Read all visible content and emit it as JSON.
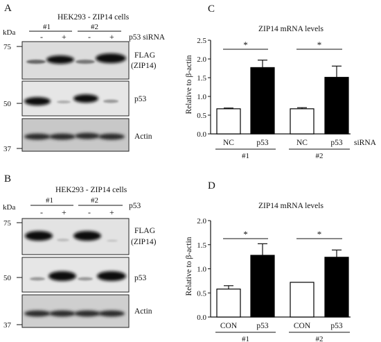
{
  "panels": {
    "A": {
      "letter": "A",
      "title": "HEK293 - ZIP14 cells",
      "kda_label": "kDa",
      "groups": [
        "#1",
        "#2"
      ],
      "treatment_label": "p53 siRNA",
      "lane_signs": [
        "-",
        "+",
        "-",
        "+"
      ],
      "markers": [
        "75",
        "50",
        "37"
      ],
      "blots": [
        {
          "label_line1": "FLAG",
          "label_line2": "(ZIP14)"
        },
        {
          "label_line1": "p53",
          "label_line2": ""
        },
        {
          "label_line1": "Actin",
          "label_line2": ""
        }
      ]
    },
    "B": {
      "letter": "B",
      "title": "HEK293 - ZIP14 cells",
      "kda_label": "kDa",
      "groups": [
        "#1",
        "#2"
      ],
      "treatment_label": "p53",
      "lane_signs": [
        "-",
        "+",
        "-",
        "+"
      ],
      "markers": [
        "75",
        "50",
        "37"
      ],
      "blots": [
        {
          "label_line1": "FLAG",
          "label_line2": "(ZIP14)"
        },
        {
          "label_line1": "p53",
          "label_line2": ""
        },
        {
          "label_line1": "Actin",
          "label_line2": ""
        }
      ]
    }
  },
  "chart_data": [
    {
      "panel": "C",
      "type": "bar",
      "title": "ZIP14 mRNA levels",
      "ylabel": "Relative to β-actin",
      "xlabel": "siRNA",
      "ylim": [
        0,
        2.5
      ],
      "yticks": [
        "0.0",
        "0.5",
        "1.0",
        "1.5",
        "2.0",
        "2.5"
      ],
      "categories": [
        "NC",
        "p53",
        "NC",
        "p53"
      ],
      "groups": [
        "#1",
        "#2"
      ],
      "values": [
        0.67,
        1.77,
        0.67,
        1.51
      ],
      "errors": [
        0.02,
        0.2,
        0.03,
        0.3
      ],
      "fills": [
        "#ffffff",
        "#000000",
        "#ffffff",
        "#000000"
      ],
      "significance": [
        "*",
        "*"
      ]
    },
    {
      "panel": "D",
      "type": "bar",
      "title": "ZIP14 mRNA levels",
      "ylabel": "Relative to β-actin",
      "xlabel": "",
      "ylim": [
        0,
        2.0
      ],
      "yticks": [
        "0.0",
        "0.5",
        "1.0",
        "1.5",
        "2.0"
      ],
      "categories": [
        "CON",
        "p53",
        "CON",
        "p53"
      ],
      "groups": [
        "#1",
        "#2"
      ],
      "values": [
        0.58,
        1.28,
        0.72,
        1.24
      ],
      "errors": [
        0.07,
        0.24,
        0,
        0.15
      ],
      "fills": [
        "#ffffff",
        "#000000",
        "#ffffff",
        "#000000"
      ],
      "significance": [
        "*",
        "*"
      ]
    }
  ],
  "style": {
    "bar_stroke": "#000000",
    "blot_bg": "#d9d9d9",
    "band_color": "#111111"
  }
}
